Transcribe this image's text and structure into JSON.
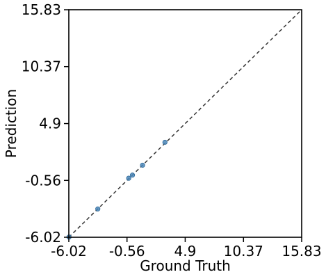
{
  "chart_data": {
    "type": "scatter",
    "title": "",
    "xlabel": "Ground Truth",
    "ylabel": "Prediction",
    "xlim": [
      -6.02,
      15.83
    ],
    "ylim": [
      -6.02,
      15.83
    ],
    "xticks": [
      -6.02,
      -0.56,
      4.9,
      10.37,
      15.83
    ],
    "yticks": [
      -6.02,
      -0.56,
      4.9,
      10.37,
      15.83
    ],
    "xtick_labels": [
      "-6.02",
      "-0.56",
      "4.9",
      "10.37",
      "15.83"
    ],
    "ytick_labels": [
      "-6.02",
      "-0.56",
      "4.9",
      "10.37",
      "15.83"
    ],
    "reference_line": {
      "from": [
        -6.02,
        -6.02
      ],
      "to": [
        15.83,
        15.83
      ],
      "style": "dashed"
    },
    "grid": false,
    "series": [
      {
        "name": "points",
        "color": "#4a86b8",
        "x": [
          -6.0,
          -3.3,
          -0.4,
          -0.05,
          0.9,
          3.0
        ],
        "y": [
          -6.0,
          -3.3,
          -0.35,
          -0.05,
          0.9,
          3.1
        ]
      }
    ]
  }
}
